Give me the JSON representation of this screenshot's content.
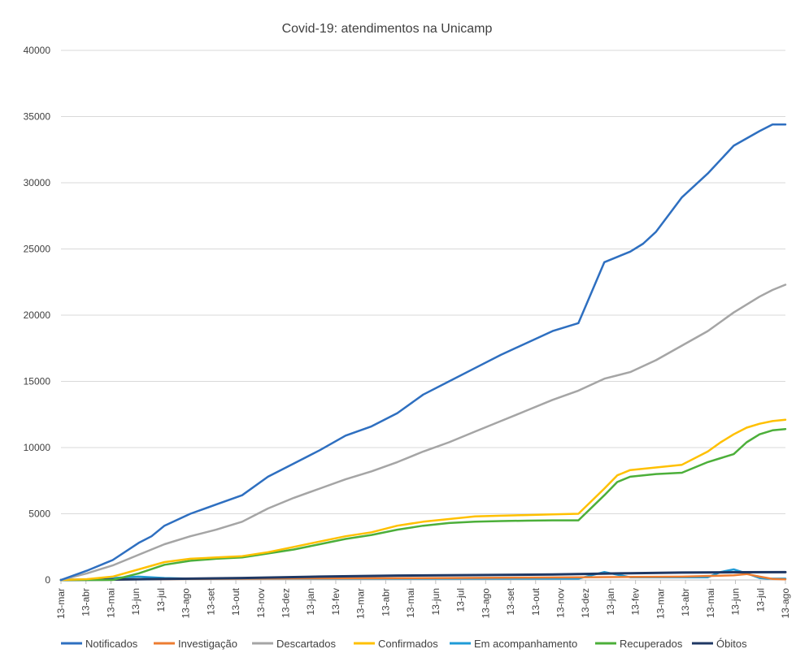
{
  "chart_data": {
    "type": "line",
    "title": "Covid-19: atendimentos  na Unicamp",
    "xlabel": "",
    "ylabel": "",
    "ylim": [
      0,
      40000
    ],
    "yticks": [
      0,
      5000,
      10000,
      15000,
      20000,
      25000,
      30000,
      35000,
      40000
    ],
    "x_range": [
      0,
      28
    ],
    "grid": "horizontal",
    "legend_position": "bottom",
    "categories": [
      "13-mar",
      "13-abr",
      "13-mai",
      "13-jun",
      "13-jul",
      "13-ago",
      "13-set",
      "13-out",
      "13-nov",
      "13-dez",
      "13-jan",
      "13-fev",
      "13-mar",
      "13-abr",
      "13-mai",
      "13-jun",
      "13-jul",
      "13-ago",
      "13-set",
      "13-out",
      "13-nov",
      "13-dez",
      "13-jan",
      "13-fev",
      "13-mar",
      "13-abr",
      "13-mai",
      "13-jun",
      "13-jul",
      "13-ago"
    ],
    "series": [
      {
        "name": "Notificados",
        "color": "#2E6FC0",
        "x": [
          0,
          1,
          2,
          3,
          3.5,
          4,
          5,
          6,
          7,
          8,
          9,
          10,
          11,
          12,
          13,
          14,
          15,
          16,
          17,
          18,
          19,
          20,
          21,
          22,
          22.5,
          23,
          23.5,
          24,
          25,
          26,
          27,
          27.5,
          28,
          28.5,
          29
        ],
        "values": [
          0,
          700,
          1500,
          2800,
          3300,
          4100,
          5000,
          5700,
          6400,
          7800,
          8800,
          9800,
          10900,
          11600,
          12600,
          14000,
          15000,
          16000,
          17000,
          17900,
          18800,
          19400,
          24000,
          24800,
          25400,
          26300,
          27600,
          28900,
          30700,
          32800,
          33900,
          34400,
          34400,
          34400,
          34400
        ]
      },
      {
        "name": "Investigação",
        "color": "#ED7D31",
        "x": [
          0,
          5,
          10,
          15,
          20,
          24,
          25,
          26,
          26.5,
          27,
          27.5,
          28,
          28.5,
          29
        ],
        "values": [
          0,
          80,
          120,
          150,
          200,
          250,
          300,
          350,
          450,
          250,
          80,
          50,
          50,
          50
        ]
      },
      {
        "name": "Descartados",
        "color": "#A5A5A5",
        "x": [
          0,
          1,
          2,
          3,
          4,
          5,
          6,
          7,
          8,
          9,
          10,
          11,
          12,
          13,
          14,
          15,
          16,
          17,
          18,
          19,
          20,
          21,
          22,
          23,
          24,
          25,
          26,
          27,
          27.5,
          28
        ],
        "values": [
          0,
          500,
          1100,
          1900,
          2700,
          3300,
          3800,
          4400,
          5400,
          6200,
          6900,
          7600,
          8200,
          8900,
          9700,
          10400,
          11200,
          12000,
          12800,
          13600,
          14300,
          15200,
          15700,
          16600,
          17700,
          18800,
          20200,
          21400,
          21900,
          22300
        ]
      },
      {
        "name": "Confirmados",
        "color": "#FFC000",
        "x": [
          0,
          1,
          2,
          3,
          4,
          5,
          6,
          7,
          8,
          9,
          10,
          11,
          12,
          13,
          14,
          15,
          16,
          17,
          18,
          19,
          20,
          21,
          21.5,
          22,
          23,
          24,
          25,
          25.5,
          26,
          26.5,
          27,
          27.5,
          28
        ],
        "values": [
          0,
          60,
          250,
          800,
          1350,
          1600,
          1700,
          1800,
          2100,
          2500,
          2900,
          3300,
          3600,
          4100,
          4400,
          4600,
          4800,
          4850,
          4900,
          4950,
          5000,
          6900,
          7900,
          8300,
          8500,
          8700,
          9700,
          10400,
          11000,
          11500,
          11800,
          12000,
          12100
        ]
      },
      {
        "name": "Em acompanhamento",
        "color": "#1F9BD7",
        "x": [
          0,
          1,
          2,
          3,
          4,
          5,
          10,
          15,
          20,
          21,
          21.5,
          22,
          23,
          24,
          25,
          25.5,
          26,
          26.5,
          27,
          27.3,
          28
        ],
        "values": [
          0,
          50,
          150,
          250,
          150,
          100,
          100,
          100,
          100,
          600,
          400,
          200,
          200,
          200,
          200,
          600,
          800,
          500,
          150,
          100,
          100
        ]
      },
      {
        "name": "Recuperados",
        "color": "#4CAF3A",
        "x": [
          0,
          2,
          3,
          4,
          5,
          6,
          7,
          8,
          9,
          10,
          11,
          12,
          13,
          14,
          15,
          16,
          17,
          18,
          19,
          20,
          21,
          21.5,
          22,
          23,
          24,
          25,
          25.5,
          26,
          26.5,
          27,
          27.5,
          28
        ],
        "values": [
          0,
          0,
          500,
          1150,
          1450,
          1600,
          1700,
          2000,
          2300,
          2700,
          3100,
          3400,
          3800,
          4100,
          4300,
          4400,
          4450,
          4480,
          4500,
          4500,
          6400,
          7400,
          7800,
          8000,
          8100,
          8900,
          9200,
          9500,
          10400,
          11000,
          11300,
          11400
        ]
      },
      {
        "name": "Óbitos",
        "color": "#1F3864",
        "x": [
          0,
          1,
          2,
          5,
          7,
          10,
          13,
          16,
          19,
          22,
          24,
          26,
          28
        ],
        "values": [
          0,
          10,
          30,
          100,
          150,
          250,
          330,
          370,
          410,
          510,
          560,
          580,
          590
        ]
      }
    ]
  }
}
